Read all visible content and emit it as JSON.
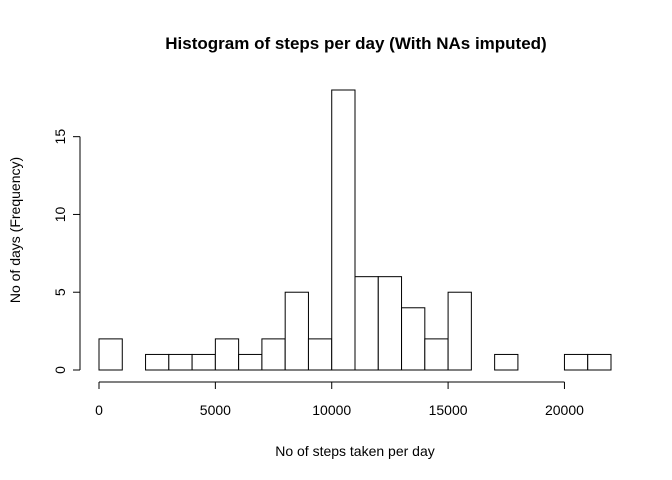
{
  "chart_data": {
    "type": "bar",
    "title": "Histogram of steps per day (With NAs imputed)",
    "xlabel": "No of steps taken per day",
    "ylabel": "No of days (Frequency)",
    "bin_width": 1000,
    "bins": [
      {
        "start": 0,
        "end": 1000,
        "count": 2
      },
      {
        "start": 1000,
        "end": 2000,
        "count": 0
      },
      {
        "start": 2000,
        "end": 3000,
        "count": 1
      },
      {
        "start": 3000,
        "end": 4000,
        "count": 1
      },
      {
        "start": 4000,
        "end": 5000,
        "count": 1
      },
      {
        "start": 5000,
        "end": 6000,
        "count": 2
      },
      {
        "start": 6000,
        "end": 7000,
        "count": 1
      },
      {
        "start": 7000,
        "end": 8000,
        "count": 2
      },
      {
        "start": 8000,
        "end": 9000,
        "count": 5
      },
      {
        "start": 9000,
        "end": 10000,
        "count": 2
      },
      {
        "start": 10000,
        "end": 11000,
        "count": 18
      },
      {
        "start": 11000,
        "end": 12000,
        "count": 6
      },
      {
        "start": 12000,
        "end": 13000,
        "count": 6
      },
      {
        "start": 13000,
        "end": 14000,
        "count": 4
      },
      {
        "start": 14000,
        "end": 15000,
        "count": 2
      },
      {
        "start": 15000,
        "end": 16000,
        "count": 5
      },
      {
        "start": 16000,
        "end": 17000,
        "count": 0
      },
      {
        "start": 17000,
        "end": 18000,
        "count": 1
      },
      {
        "start": 18000,
        "end": 19000,
        "count": 0
      },
      {
        "start": 19000,
        "end": 20000,
        "count": 0
      },
      {
        "start": 20000,
        "end": 21000,
        "count": 1
      },
      {
        "start": 21000,
        "end": 22000,
        "count": 1
      }
    ],
    "xlim": [
      0,
      22000
    ],
    "ylim": [
      0,
      18
    ],
    "x_ticks": [
      0,
      5000,
      10000,
      15000,
      20000
    ],
    "x_tick_labels": [
      "0",
      "5000",
      "10000",
      "15000",
      "20000"
    ],
    "y_ticks": [
      0,
      5,
      10,
      15
    ],
    "y_tick_labels": [
      "0",
      "5",
      "10",
      "15"
    ],
    "grid": false,
    "bar_fill": "#ffffff",
    "bar_stroke": "#000000"
  }
}
